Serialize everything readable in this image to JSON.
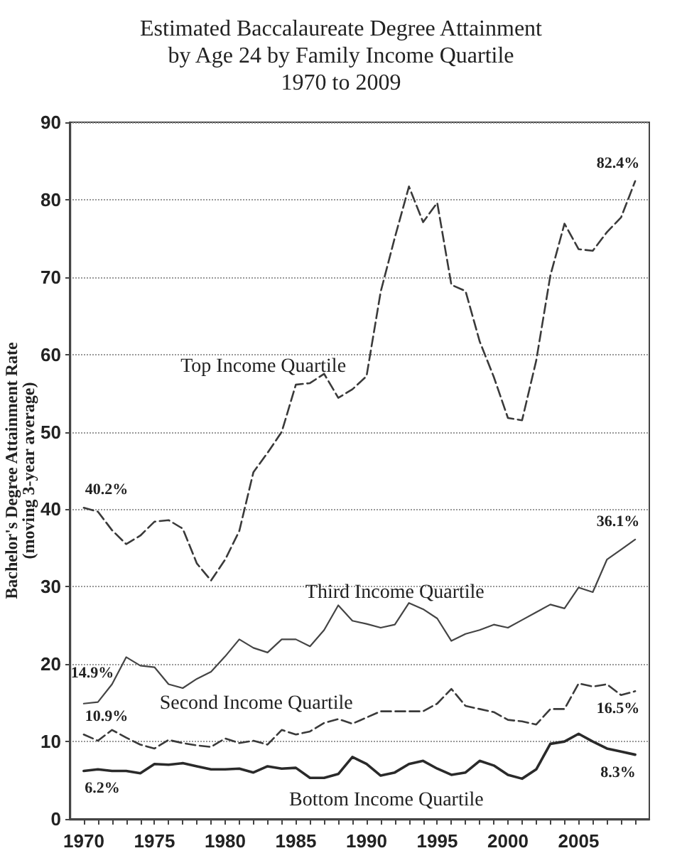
{
  "chart_data": {
    "type": "line",
    "title": "Estimated Baccalaureate Degree Attainment\nby Age 24 by Family Income Quartile",
    "subtitle": "1970 to 2009",
    "ylabel": "Bachelor's Degree Attainment Rate\n(moving 3-year average)",
    "x": [
      1970,
      1971,
      1972,
      1973,
      1974,
      1975,
      1976,
      1977,
      1978,
      1979,
      1980,
      1981,
      1982,
      1983,
      1984,
      1985,
      1986,
      1987,
      1988,
      1989,
      1990,
      1991,
      1992,
      1993,
      1994,
      1995,
      1996,
      1997,
      1998,
      1999,
      2000,
      2001,
      2002,
      2003,
      2004,
      2005,
      2006,
      2007,
      2008,
      2009
    ],
    "series": [
      {
        "name": "Top Income Quartile",
        "color": "#3a3a3a",
        "line_style": "dashed",
        "values": [
          40.2,
          39.7,
          37.3,
          35.5,
          36.6,
          38.4,
          38.6,
          37.5,
          33.0,
          30.8,
          33.5,
          37.2,
          44.8,
          47.3,
          50.0,
          56.1,
          56.3,
          57.5,
          54.4,
          55.5,
          57.2,
          68.1,
          75.1,
          81.7,
          77.1,
          79.6,
          69.0,
          68.2,
          61.7,
          57.1,
          51.8,
          51.5,
          59.2,
          70.2,
          76.9,
          73.6,
          73.4,
          75.8,
          77.7,
          82.4
        ],
        "value_labels": [
          "40.2%",
          null,
          null,
          null,
          null,
          null,
          null,
          null,
          null,
          null,
          null,
          null,
          null,
          null,
          null,
          null,
          null,
          null,
          null,
          null,
          null,
          null,
          null,
          null,
          null,
          null,
          null,
          null,
          null,
          null,
          null,
          null,
          null,
          null,
          null,
          null,
          null,
          null,
          null,
          "82.4%"
        ]
      },
      {
        "name": "Third Income Quartile",
        "color": "#444444",
        "line_style": "solid",
        "values": [
          14.9,
          15.1,
          17.4,
          20.9,
          19.8,
          19.6,
          17.4,
          16.9,
          18.1,
          19.0,
          21.0,
          23.2,
          22.1,
          21.5,
          23.2,
          23.2,
          22.3,
          24.4,
          27.6,
          25.6,
          25.2,
          24.7,
          25.1,
          27.9,
          27.1,
          25.9,
          23.0,
          23.9,
          24.4,
          25.1,
          24.7,
          25.7,
          26.7,
          27.7,
          27.2,
          29.9,
          29.3,
          33.5,
          34.8,
          36.1
        ],
        "value_labels": [
          "14.9%",
          null,
          null,
          null,
          null,
          null,
          null,
          null,
          null,
          null,
          null,
          null,
          null,
          null,
          null,
          null,
          null,
          null,
          null,
          null,
          null,
          null,
          null,
          null,
          null,
          null,
          null,
          null,
          null,
          null,
          null,
          null,
          null,
          null,
          null,
          null,
          null,
          null,
          null,
          "36.1%"
        ]
      },
      {
        "name": "Second Income Quartile",
        "color": "#3a3a3a",
        "line_style": "dashed",
        "values": [
          10.9,
          10.1,
          11.5,
          10.5,
          9.6,
          9.1,
          10.2,
          9.8,
          9.5,
          9.3,
          10.4,
          9.8,
          10.1,
          9.6,
          11.5,
          10.9,
          11.3,
          12.4,
          12.9,
          12.3,
          13.1,
          13.9,
          13.9,
          13.9,
          13.9,
          14.9,
          16.8,
          14.6,
          14.2,
          13.8,
          12.8,
          12.6,
          12.2,
          14.2,
          14.2,
          17.5,
          17.1,
          17.4,
          16.0,
          16.5
        ],
        "value_labels": [
          "10.9%",
          null,
          null,
          null,
          null,
          null,
          null,
          null,
          null,
          null,
          null,
          null,
          null,
          null,
          null,
          null,
          null,
          null,
          null,
          null,
          null,
          null,
          null,
          null,
          null,
          null,
          null,
          null,
          null,
          null,
          null,
          null,
          null,
          null,
          null,
          null,
          null,
          null,
          null,
          "16.5%"
        ]
      },
      {
        "name": "Bottom Income Quartile",
        "color": "#2a2a2a",
        "line_style": "solid",
        "values": [
          6.2,
          6.4,
          6.2,
          6.2,
          5.9,
          7.1,
          7.0,
          7.2,
          6.8,
          6.4,
          6.4,
          6.5,
          6.0,
          6.8,
          6.5,
          6.6,
          5.3,
          5.3,
          5.8,
          8.0,
          7.1,
          5.6,
          6.0,
          7.1,
          7.5,
          6.5,
          5.7,
          6.0,
          7.5,
          6.9,
          5.7,
          5.2,
          6.4,
          9.7,
          10.0,
          11.0,
          10.0,
          9.1,
          8.7,
          8.3
        ],
        "value_labels": [
          "6.2%",
          null,
          null,
          null,
          null,
          null,
          null,
          null,
          null,
          null,
          null,
          null,
          null,
          null,
          null,
          null,
          null,
          null,
          null,
          null,
          null,
          null,
          null,
          null,
          null,
          null,
          null,
          null,
          null,
          null,
          null,
          null,
          null,
          null,
          null,
          null,
          null,
          null,
          null,
          "8.3%"
        ]
      }
    ],
    "xlim": [
      1969,
      2010
    ],
    "xticks": [
      1970,
      {
        "value": 1971,
        "label": null
      },
      {
        "value": 1972,
        "label": null
      },
      {
        "value": 1973,
        "label": null
      },
      {
        "value": 1974,
        "label": null
      },
      1975,
      {
        "value": 1976,
        "label": null
      },
      {
        "value": 1977,
        "label": null
      },
      {
        "value": 1978,
        "label": null
      },
      {
        "value": 1979,
        "label": null
      },
      1980,
      {
        "value": 1981,
        "label": null
      },
      {
        "value": 1982,
        "label": null
      },
      {
        "value": 1983,
        "label": null
      },
      {
        "value": 1984,
        "label": null
      },
      1985,
      {
        "value": 1986,
        "label": null
      },
      {
        "value": 1987,
        "label": null
      },
      {
        "value": 1988,
        "label": null
      },
      {
        "value": 1989,
        "label": null
      },
      1990,
      {
        "value": 1991,
        "label": null
      },
      {
        "value": 1992,
        "label": null
      },
      {
        "value": 1993,
        "label": null
      },
      {
        "value": 1994,
        "label": null
      },
      1995,
      {
        "value": 1996,
        "label": null
      },
      {
        "value": 1997,
        "label": null
      },
      {
        "value": 1998,
        "label": null
      },
      {
        "value": 1999,
        "label": null
      },
      2000,
      {
        "value": 2001,
        "label": null
      },
      {
        "value": 2002,
        "label": null
      },
      {
        "value": 2003,
        "label": null
      },
      {
        "value": 2004,
        "label": null
      },
      2005,
      {
        "value": 2006,
        "label": null
      },
      {
        "value": 2007,
        "label": null
      },
      {
        "value": 2008,
        "label": null
      },
      {
        "value": 2009,
        "label": null
      }
    ],
    "ylim": [
      0,
      90
    ],
    "yticks": [
      0,
      10,
      20,
      30,
      40,
      50,
      60,
      70,
      80,
      90
    ],
    "grid": "y",
    "legend": false,
    "marker": "none"
  }
}
